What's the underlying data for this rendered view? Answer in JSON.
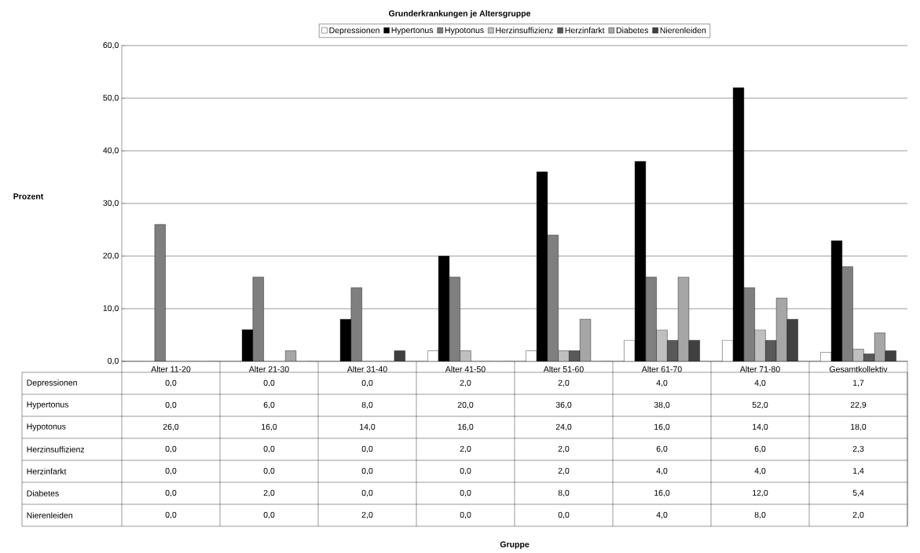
{
  "chart_data": {
    "type": "bar",
    "title": "Grunderkrankungen je Altersgruppe",
    "annotations": [
      "Prozent",
      "Gruppe"
    ],
    "categories": [
      "Alter 11-20",
      "Alter 21-30",
      "Alter 31-40",
      "Alter 41-50",
      "Alter 51-60",
      "Alter 61-70",
      "Alter 71-80",
      "Gesamtkollektiv"
    ],
    "series": [
      {
        "name": "Depressionen",
        "color": "#ffffff",
        "values": [
          0.0,
          0.0,
          0.0,
          2.0,
          2.0,
          4.0,
          4.0,
          1.7
        ],
        "value_labels": [
          "0,0",
          "0,0",
          "0,0",
          "2,0",
          "2,0",
          "4,0",
          "4,0",
          "1,7"
        ]
      },
      {
        "name": "Hypertonus",
        "color": "#000000",
        "values": [
          0.0,
          6.0,
          8.0,
          20.0,
          36.0,
          38.0,
          52.0,
          22.9
        ],
        "value_labels": [
          "0,0",
          "6,0",
          "8,0",
          "20,0",
          "36,0",
          "38,0",
          "52,0",
          "22,9"
        ]
      },
      {
        "name": "Hypotonus",
        "color": "#7f7f7f",
        "values": [
          26.0,
          16.0,
          14.0,
          16.0,
          24.0,
          16.0,
          14.0,
          18.0
        ],
        "value_labels": [
          "26,0",
          "16,0",
          "14,0",
          "16,0",
          "24,0",
          "16,0",
          "14,0",
          "18,0"
        ]
      },
      {
        "name": "Herzinsuffizienz",
        "color": "#bfbfbf",
        "values": [
          0.0,
          0.0,
          0.0,
          2.0,
          2.0,
          6.0,
          6.0,
          2.3
        ],
        "value_labels": [
          "0,0",
          "0,0",
          "0,0",
          "2,0",
          "2,0",
          "6,0",
          "6,0",
          "2,3"
        ]
      },
      {
        "name": "Herzinfarkt",
        "color": "#595959",
        "values": [
          0.0,
          0.0,
          0.0,
          0.0,
          2.0,
          4.0,
          4.0,
          1.4
        ],
        "value_labels": [
          "0,0",
          "0,0",
          "0,0",
          "0,0",
          "2,0",
          "4,0",
          "4,0",
          "1,4"
        ]
      },
      {
        "name": "Diabetes",
        "color": "#a6a6a6",
        "values": [
          0.0,
          2.0,
          0.0,
          0.0,
          8.0,
          16.0,
          12.0,
          5.4
        ],
        "value_labels": [
          "0,0",
          "2,0",
          "0,0",
          "0,0",
          "8,0",
          "16,0",
          "12,0",
          "5,4"
        ]
      },
      {
        "name": "Nierenleiden",
        "color": "#404040",
        "values": [
          0.0,
          0.0,
          2.0,
          0.0,
          0.0,
          4.0,
          8.0,
          2.0
        ],
        "value_labels": [
          "0,0",
          "0,0",
          "2,0",
          "0,0",
          "0,0",
          "4,0",
          "8,0",
          "2,0"
        ]
      }
    ],
    "ylim": [
      0,
      60
    ],
    "yticks": [
      {
        "value": 0,
        "label": "0,0"
      },
      {
        "value": 10,
        "label": "10,0"
      },
      {
        "value": 20,
        "label": "20,0"
      },
      {
        "value": 30,
        "label": "30,0"
      },
      {
        "value": 40,
        "label": "40,0"
      },
      {
        "value": 50,
        "label": "50,0"
      },
      {
        "value": 60,
        "label": "60,0"
      }
    ],
    "grid": "y",
    "legend": "top"
  }
}
